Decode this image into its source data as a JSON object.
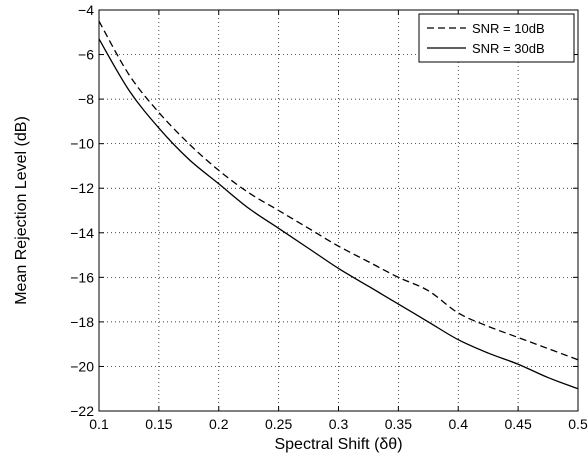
{
  "chart_data": {
    "type": "line",
    "title": "",
    "xlabel": "Spectral Shift (δθ)",
    "ylabel": "Mean Rejection Level (dB)",
    "xlim": [
      0.1,
      0.5
    ],
    "ylim": [
      -22,
      -4
    ],
    "xticks": [
      0.1,
      0.15,
      0.2,
      0.25,
      0.3,
      0.35,
      0.4,
      0.45,
      0.5
    ],
    "xtick_labels": [
      "0.1",
      "0.15",
      "0.2",
      "0.25",
      "0.3",
      "0.35",
      "0.4",
      "0.45",
      "0.5"
    ],
    "yticks": [
      -4,
      -6,
      -8,
      -10,
      -12,
      -14,
      -16,
      -18,
      -20,
      -22
    ],
    "ytick_labels": [
      "−4",
      "−6",
      "−8",
      "−10",
      "−12",
      "−14",
      "−16",
      "−18",
      "−20",
      "−22"
    ],
    "grid": true,
    "legend_position": "top-right",
    "series": [
      {
        "name": "SNR = 10dB",
        "line_style": "dashed",
        "color": "#000000",
        "x": [
          0.1,
          0.125,
          0.15,
          0.175,
          0.2,
          0.225,
          0.25,
          0.275,
          0.3,
          0.325,
          0.35,
          0.375,
          0.4,
          0.425,
          0.45,
          0.475,
          0.5
        ],
        "y": [
          -4.5,
          -6.9,
          -8.6,
          -10.0,
          -11.2,
          -12.2,
          -13.0,
          -13.8,
          -14.6,
          -15.3,
          -16.0,
          -16.6,
          -17.6,
          -18.2,
          -18.7,
          -19.2,
          -19.7
        ]
      },
      {
        "name": "SNR = 30dB",
        "line_style": "solid",
        "color": "#000000",
        "x": [
          0.1,
          0.125,
          0.15,
          0.175,
          0.2,
          0.225,
          0.25,
          0.275,
          0.3,
          0.325,
          0.35,
          0.375,
          0.4,
          0.425,
          0.45,
          0.475,
          0.5
        ],
        "y": [
          -5.3,
          -7.6,
          -9.3,
          -10.7,
          -11.8,
          -12.9,
          -13.8,
          -14.7,
          -15.6,
          -16.4,
          -17.2,
          -18.0,
          -18.8,
          -19.4,
          -19.9,
          -20.5,
          -21.0
        ]
      }
    ]
  }
}
